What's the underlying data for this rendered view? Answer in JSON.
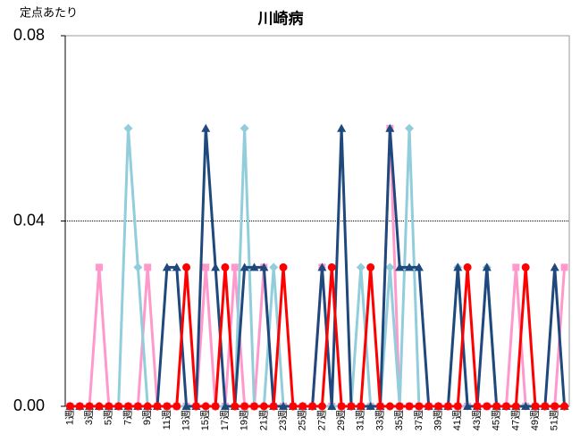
{
  "chart_data": {
    "type": "line",
    "title": "川崎病",
    "ylabel": "定点あたり",
    "categories": [
      "1週",
      null,
      "3週",
      null,
      "5週",
      null,
      "7週",
      null,
      "9週",
      null,
      "11週",
      null,
      "13週",
      null,
      "15週",
      null,
      "17週",
      null,
      "19週",
      null,
      "21週",
      null,
      "23週",
      null,
      "25週",
      null,
      "27週",
      null,
      "29週",
      null,
      "31週",
      null,
      "33週",
      null,
      "35週",
      null,
      "37週",
      null,
      "39週",
      null,
      "41週",
      null,
      "43週",
      null,
      "45週",
      null,
      "47週",
      null,
      "49週",
      null,
      "51週",
      null
    ],
    "series": [
      {
        "color": "#ff99cc",
        "marker": "square",
        "values": [
          0,
          0,
          0,
          0.03,
          0,
          0,
          0,
          0,
          0.03,
          0,
          0,
          0,
          0,
          0,
          0.03,
          0,
          0,
          0.03,
          0,
          0,
          0.03,
          0,
          0,
          0,
          0,
          0,
          0.03,
          0,
          0,
          0,
          0,
          0,
          0,
          0.06,
          0,
          0,
          0,
          0,
          0,
          0,
          0,
          0,
          0,
          0,
          0,
          0,
          0.03,
          0,
          0,
          0,
          0,
          0.03
        ]
      },
      {
        "color": "#92cddc",
        "marker": "diamond",
        "values": [
          0,
          0,
          0,
          0,
          0,
          0,
          0.06,
          0.03,
          0,
          0,
          0,
          0,
          0,
          0,
          0,
          0,
          0,
          0,
          0.06,
          0,
          0,
          0.03,
          0,
          0,
          0,
          0,
          0,
          0,
          0,
          0,
          0.03,
          0,
          0,
          0.03,
          0,
          0.06,
          0,
          0,
          0,
          0,
          0.03,
          0,
          0,
          0.03,
          0,
          0,
          0,
          0,
          0,
          0,
          0,
          0
        ]
      },
      {
        "color": "#1f497d",
        "marker": "triangle",
        "values": [
          0,
          0,
          0,
          0,
          0,
          0,
          0,
          0,
          0,
          0,
          0.03,
          0.03,
          0,
          0,
          0.06,
          0.03,
          0,
          0,
          0.03,
          0.03,
          0.03,
          0,
          0,
          0,
          0,
          0,
          0.03,
          0,
          0.06,
          0,
          0,
          0,
          0,
          0.06,
          0.03,
          0.03,
          0.03,
          0,
          0,
          0,
          0.03,
          0,
          0,
          0.03,
          0,
          0,
          0,
          0,
          0,
          0,
          0.03,
          0
        ]
      },
      {
        "color": "#ff0000",
        "marker": "circle",
        "values": [
          0,
          0,
          0,
          0,
          0,
          0,
          0,
          0,
          0,
          0,
          0,
          0,
          0.03,
          0,
          0,
          0,
          0.03,
          0,
          0,
          0,
          0,
          0,
          0.03,
          0,
          0,
          0,
          0,
          0.03,
          0,
          0,
          0,
          0.03,
          0,
          0,
          0,
          0,
          0,
          0,
          0,
          0,
          0,
          0.03,
          0,
          0,
          0,
          0,
          0,
          0.03,
          0,
          0,
          0,
          0
        ]
      }
    ],
    "ylim": [
      0,
      0.08
    ],
    "yticks": [
      {
        "value": 0,
        "label": "0.00"
      },
      0.04,
      0.08
    ],
    "grid": true
  }
}
